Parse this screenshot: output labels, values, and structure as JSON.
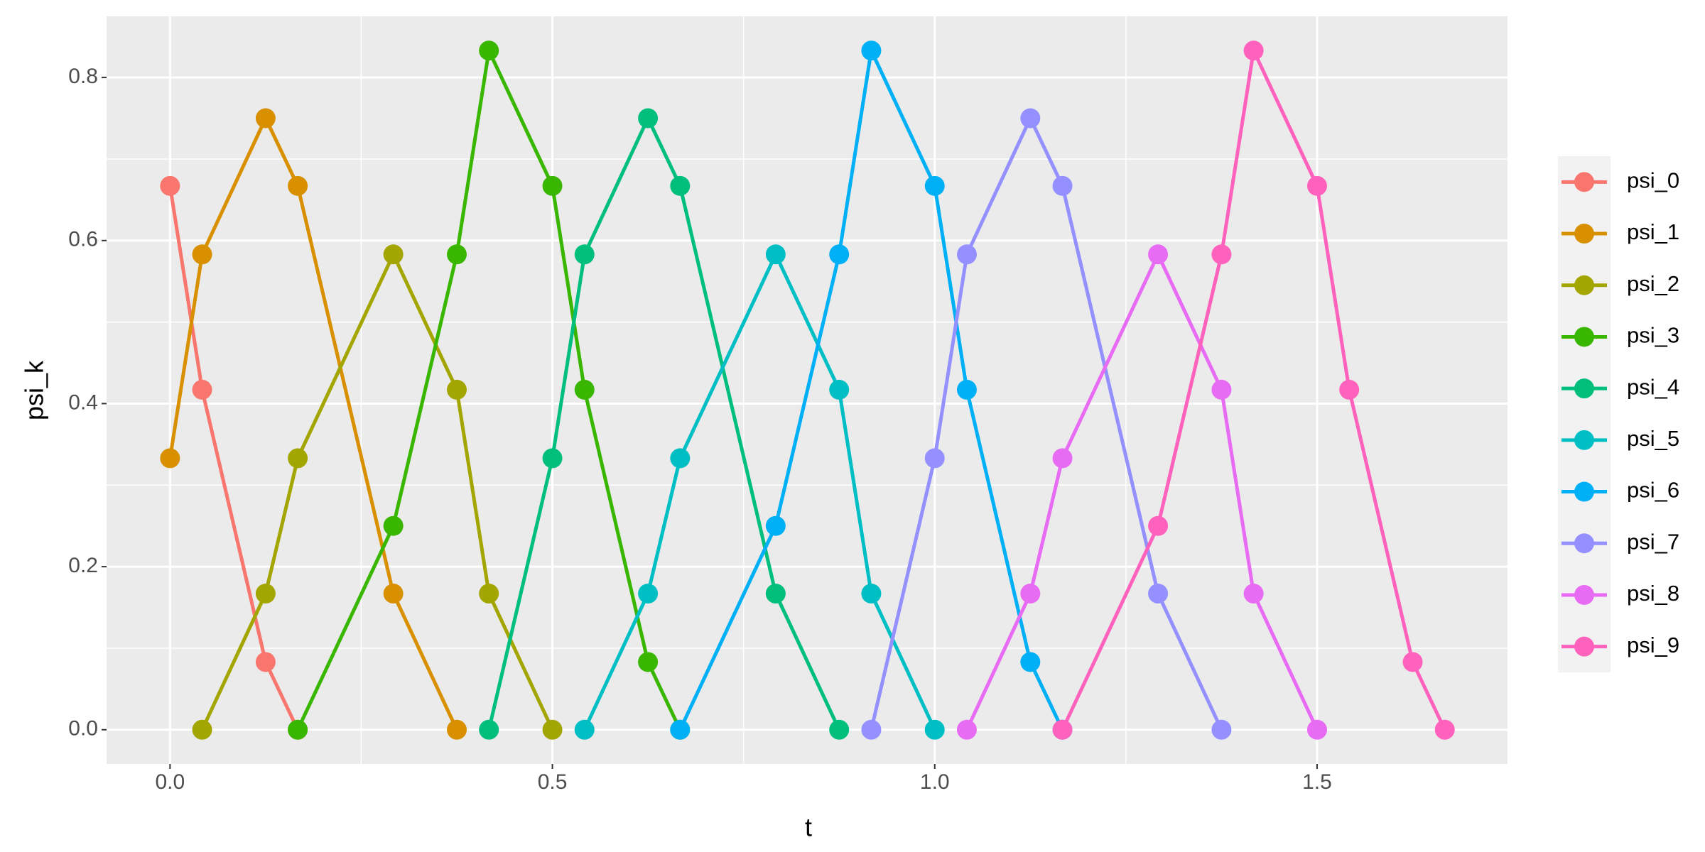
{
  "chart_data": {
    "type": "line",
    "x_label": "t",
    "y_label": "psi_k",
    "xlim": [
      -0.083,
      1.749
    ],
    "ylim": [
      -0.042,
      0.875
    ],
    "xticks": [
      {
        "value": 0,
        "label": "0.0"
      },
      {
        "value": 0.5,
        "label": "0.5"
      },
      {
        "value": 1,
        "label": "1.0"
      },
      {
        "value": 1.5,
        "label": "1.5"
      }
    ],
    "yticks": [
      {
        "value": 0,
        "label": "0.0"
      },
      {
        "value": 0.2,
        "label": "0.2"
      },
      {
        "value": 0.4,
        "label": "0.4"
      },
      {
        "value": 0.6,
        "label": "0.6"
      },
      {
        "value": 0.8,
        "label": "0.8"
      }
    ],
    "x_minor_grid": [
      0.25,
      0.75,
      1.25
    ],
    "y_minor_grid": [
      0.1,
      0.3,
      0.5,
      0.7
    ],
    "grid": true,
    "legend": "right",
    "series": [
      {
        "name": "psi_0",
        "color": "#F8766D",
        "x": [
          0,
          0.042,
          0.125,
          0.167
        ],
        "values": [
          0.667,
          0.417,
          0.083,
          0
        ]
      },
      {
        "name": "psi_1",
        "color": "#D89000",
        "x": [
          0,
          0.042,
          0.125,
          0.167,
          0.292,
          0.375
        ],
        "values": [
          0.333,
          0.583,
          0.75,
          0.667,
          0.167,
          0
        ]
      },
      {
        "name": "psi_2",
        "color": "#A3A500",
        "x": [
          0.042,
          0.125,
          0.167,
          0.292,
          0.375,
          0.417,
          0.5
        ],
        "values": [
          0,
          0.167,
          0.333,
          0.583,
          0.417,
          0.167,
          0
        ]
      },
      {
        "name": "psi_3",
        "color": "#39B600",
        "x": [
          0.167,
          0.292,
          0.375,
          0.417,
          0.5,
          0.542,
          0.625,
          0.667
        ],
        "values": [
          0,
          0.25,
          0.583,
          0.833,
          0.667,
          0.417,
          0.083,
          0
        ]
      },
      {
        "name": "psi_4",
        "color": "#00BF7D",
        "x": [
          0.417,
          0.5,
          0.542,
          0.625,
          0.667,
          0.792,
          0.875
        ],
        "values": [
          0,
          0.333,
          0.583,
          0.75,
          0.667,
          0.167,
          0
        ]
      },
      {
        "name": "psi_5",
        "color": "#00BFC4",
        "x": [
          0.542,
          0.625,
          0.667,
          0.792,
          0.875,
          0.917,
          1.0
        ],
        "values": [
          0,
          0.167,
          0.333,
          0.583,
          0.417,
          0.167,
          0
        ]
      },
      {
        "name": "psi_6",
        "color": "#00B0F6",
        "x": [
          0.667,
          0.792,
          0.875,
          0.917,
          1.0,
          1.042,
          1.125,
          1.167
        ],
        "values": [
          0,
          0.25,
          0.583,
          0.833,
          0.667,
          0.417,
          0.083,
          0
        ]
      },
      {
        "name": "psi_7",
        "color": "#9590FF",
        "x": [
          0.917,
          1.0,
          1.042,
          1.125,
          1.167,
          1.292,
          1.375
        ],
        "values": [
          0,
          0.333,
          0.583,
          0.75,
          0.667,
          0.167,
          0
        ]
      },
      {
        "name": "psi_8",
        "color": "#E76BF3",
        "x": [
          1.042,
          1.125,
          1.167,
          1.292,
          1.375,
          1.417,
          1.5
        ],
        "values": [
          0,
          0.167,
          0.333,
          0.583,
          0.417,
          0.167,
          0
        ]
      },
      {
        "name": "psi_9",
        "color": "#FF62BC",
        "x": [
          1.167,
          1.292,
          1.375,
          1.417,
          1.5,
          1.542,
          1.625,
          1.667
        ],
        "values": [
          0,
          0.25,
          0.583,
          0.833,
          0.667,
          0.417,
          0.083,
          0
        ]
      }
    ]
  }
}
